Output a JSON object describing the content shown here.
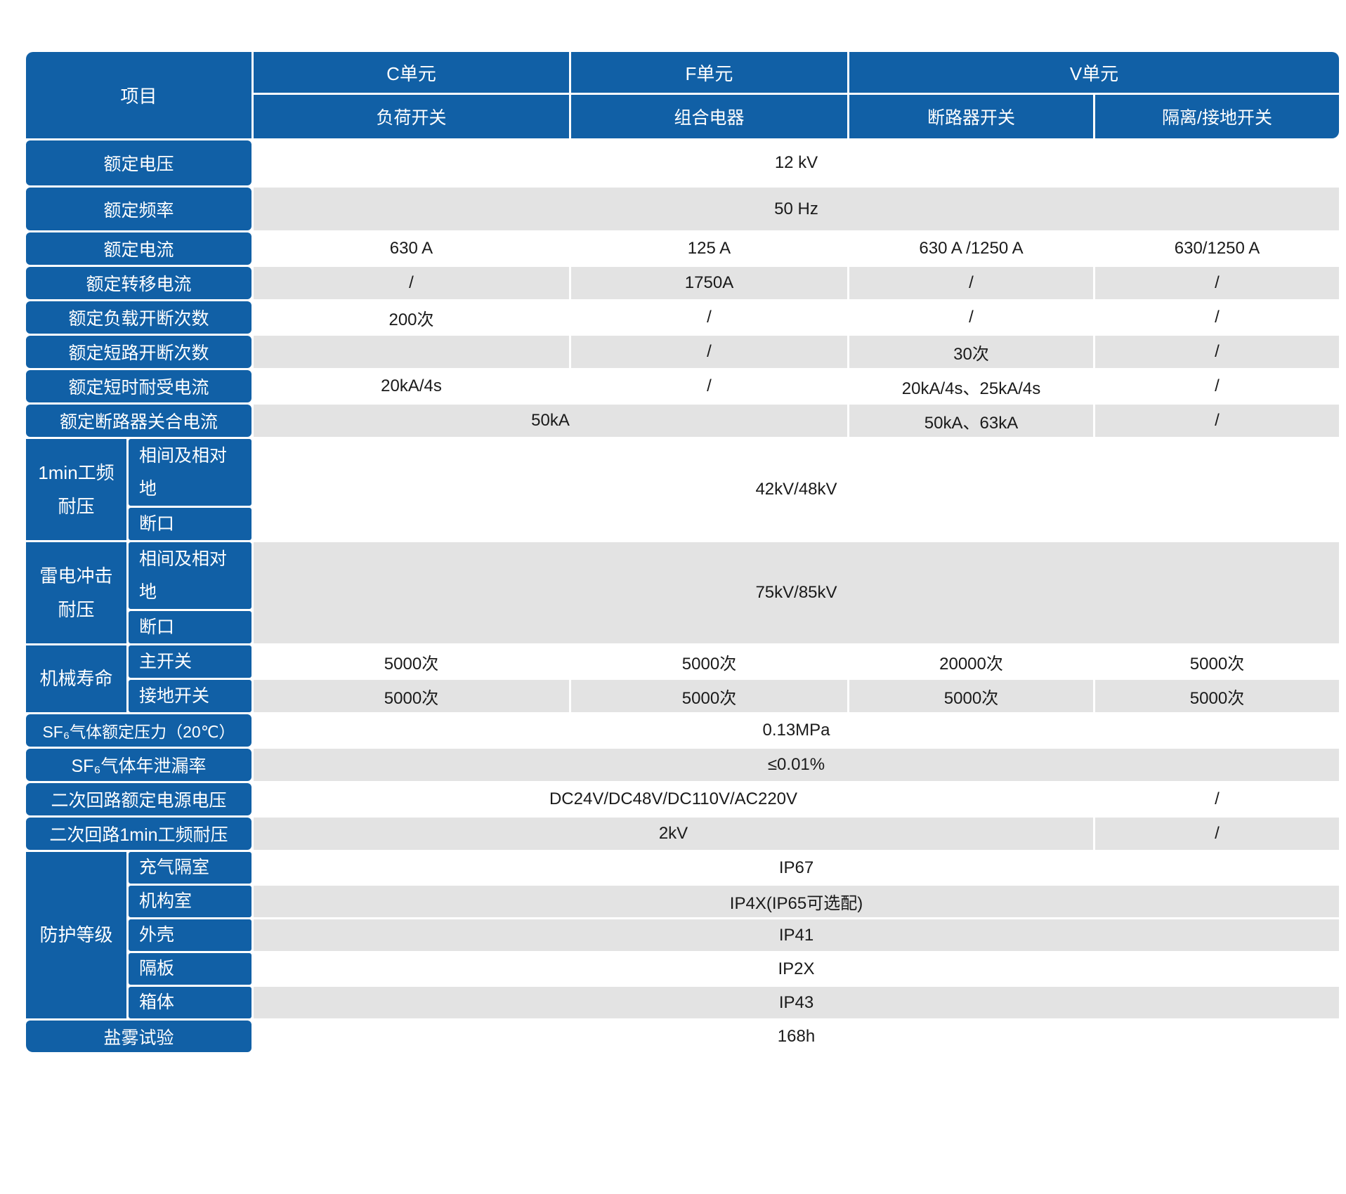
{
  "colors": {
    "header_blue": "#1160A6",
    "row_gray": "#E3E3E3",
    "row_white": "#FFFFFF",
    "header_text": "#FFFFFF",
    "value_text": "#1A1A1A"
  },
  "table": {
    "corner": "项目",
    "groups": {
      "c": "C单元",
      "f": "F单元",
      "v": "V单元"
    },
    "subheaders": {
      "c": "负荷开关",
      "f": "组合电器",
      "v_cb": "断路器开关",
      "v_ds": "隔离/接地开关"
    },
    "rows": {
      "rated_voltage": {
        "label": "额定电压",
        "value": "12 kV"
      },
      "rated_frequency": {
        "label": "额定频率",
        "value": "50 Hz"
      },
      "rated_current": {
        "label": "额定电流",
        "values": [
          "630 A",
          "125 A",
          "630 A /1250 A",
          "630/1250 A"
        ]
      },
      "rated_transfer_current": {
        "label": "额定转移电流",
        "values": [
          "/",
          "1750A",
          "/",
          "/"
        ]
      },
      "rated_load_breaking_ops": {
        "label": "额定负载开断次数",
        "values": [
          "200次",
          "/",
          "/",
          "/"
        ]
      },
      "rated_short_circuit_breaking_ops": {
        "label": "额定短路开断次数",
        "values": [
          "",
          "/",
          "30次",
          "/"
        ]
      },
      "rated_short_time_withstand": {
        "label": "额定短时耐受电流",
        "values": [
          "20kA/4s",
          "/",
          "20kA/4s、25kA/4s",
          "/"
        ]
      },
      "rated_making_current": {
        "label": "额定断路器关合电流",
        "value_cf": "50kA",
        "value_vcb": "50kA、63kA",
        "value_vds": "/"
      },
      "power_freq_withstand": {
        "label": "1min工频耐压",
        "sub1": "相间及相对地",
        "sub2": "断口",
        "value": "42kV/48kV"
      },
      "lightning_impulse": {
        "label": "雷电冲击耐压",
        "sub1": "相间及相对地",
        "sub2": "断口",
        "value": "75kV/85kV"
      },
      "mechanical_life": {
        "label": "机械寿命",
        "sub1": "主开关",
        "sub2": "接地开关",
        "main_values": [
          "5000次",
          "5000次",
          "20000次",
          "5000次"
        ],
        "earth_values": [
          "5000次",
          "5000次",
          "5000次",
          "5000次"
        ]
      },
      "sf6_pressure": {
        "label": "SF₆气体额定压力（20℃）",
        "value": "0.13MPa"
      },
      "sf6_leakage": {
        "label": "SF₆气体年泄漏率",
        "value": "≤0.01%"
      },
      "secondary_voltage": {
        "label": "二次回路额定电源电压",
        "value": "DC24V/DC48V/DC110V/AC220V",
        "value_vds": "/"
      },
      "secondary_withstand": {
        "label": "二次回路1min工频耐压",
        "value": "2kV",
        "value_vds": "/"
      },
      "protection": {
        "label": "防护等级",
        "items": [
          {
            "label": "充气隔室",
            "value": "IP67"
          },
          {
            "label": "机构室",
            "value": "IP4X(IP65可选配)"
          },
          {
            "label": "外壳",
            "value": "IP41"
          },
          {
            "label": "隔板",
            "value": "IP2X"
          },
          {
            "label": "箱体",
            "value": "IP43"
          }
        ]
      },
      "salt_spray": {
        "label": "盐雾试验",
        "value": "168h"
      }
    }
  }
}
